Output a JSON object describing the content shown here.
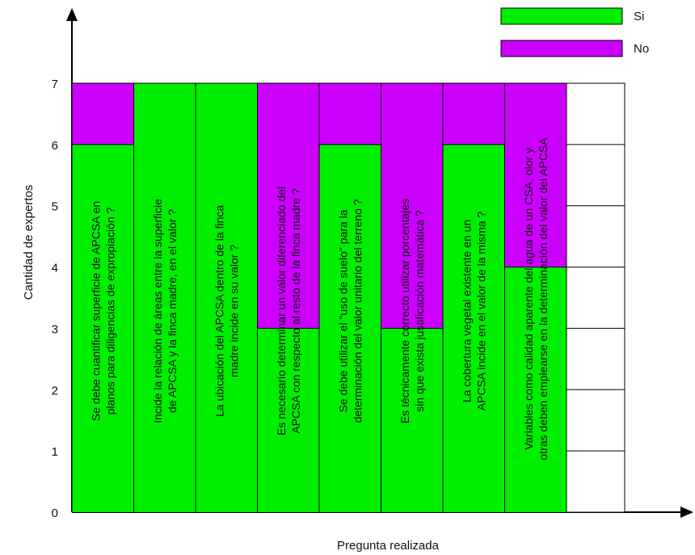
{
  "chart_data": {
    "type": "bar",
    "stacked": true,
    "ylabel": "Cantidad de expertos",
    "xlabel": "Pregunta realizada",
    "ylim": [
      0,
      7
    ],
    "yticks": [
      "0",
      "1",
      "2",
      "3",
      "4",
      "5",
      "6",
      "7"
    ],
    "categories": [
      [
        "Se debe cuantificar superficie de APCSA en",
        "planos para diligencias de expropiación ?"
      ],
      [
        "Incide la relación de áreas entre la superficie",
        "de APCSA y la finca madre, en el valor ?"
      ],
      [
        "La ubicación del APCSA dentro de la finca",
        "madre incide en su valor ?"
      ],
      [
        "Es necesario determinar un valor diferenciado del",
        "APCSA con respecto al resto de la finca madre ?"
      ],
      [
        "Se debe utilizar el \"uso de suelo\" para la",
        "determinación del valor unitario del terreno ?"
      ],
      [
        "Es técnicamente correcto utilizar porcentajes",
        "sin que exista justificación matemática ?"
      ],
      [
        "La cobertura vegetal existente en un",
        "APCSA incide en el valor de la misma ?"
      ],
      [
        "Variables como calidad aparente del agua de un CSA, olor y",
        "otras deben emplearse en la determinación del valor  del APCSA"
      ]
    ],
    "series": [
      {
        "name": "Si",
        "color": "#00ee00",
        "values": [
          6,
          7,
          7,
          3,
          6,
          3,
          6,
          4
        ]
      },
      {
        "name": "No",
        "color": "#cc00ff",
        "values": [
          1,
          0,
          0,
          4,
          1,
          4,
          1,
          3
        ]
      }
    ],
    "legend_position": "top-right",
    "grid": "right-side empty column only"
  }
}
